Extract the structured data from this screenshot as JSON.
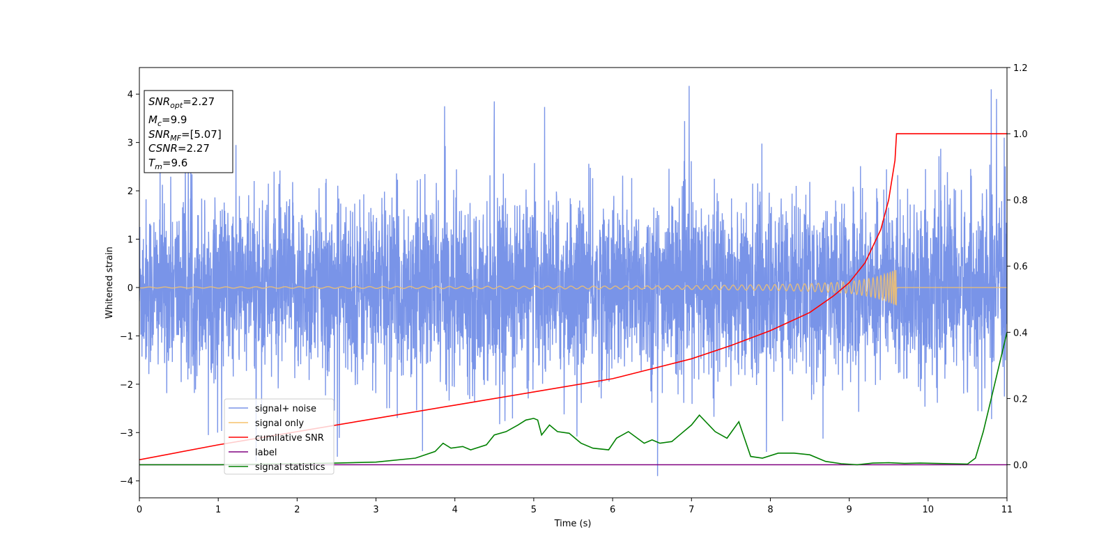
{
  "chart_data": {
    "type": "line",
    "title": "",
    "xlabel": "Time (s)",
    "ylabel": "Whitened strain",
    "y2label": "",
    "xlim": [
      0,
      11
    ],
    "ylim": [
      -4.35,
      4.55
    ],
    "y2lim": [
      -0.1,
      1.2
    ],
    "xticks": [
      0,
      1,
      2,
      3,
      4,
      5,
      6,
      7,
      8,
      9,
      10,
      11
    ],
    "yticks": [
      -4,
      -3,
      -2,
      -1,
      0,
      1,
      2,
      3,
      4
    ],
    "y2ticks": [
      0.0,
      0.2,
      0.4,
      0.6,
      0.8,
      1.0,
      1.2
    ],
    "y2tick_labels": [
      "0.0",
      "0.2",
      "0.4",
      "0.6",
      "0.8",
      "1.0",
      "1.2"
    ],
    "grid": false,
    "legend_position": "lower-left",
    "series": [
      {
        "name": "signal+ noise",
        "axis": "left",
        "color": "#7994e8",
        "kind": "noise-band",
        "approx_std": 0.9,
        "approx_range": [
          -3.9,
          4.2
        ],
        "notable_peaks": [
          [
            6.97,
            4.17
          ],
          [
            10.8,
            4.1
          ],
          [
            3.87,
            3.75
          ],
          [
            4.5,
            3.85
          ],
          [
            6.57,
            -3.9
          ],
          [
            2.51,
            -3.5
          ],
          [
            7.95,
            -3.4
          ]
        ]
      },
      {
        "name": "signal only",
        "axis": "left",
        "color": "#f5c26b",
        "kind": "chirp",
        "merger_time": 9.6,
        "envelope": [
          [
            0,
            0.01
          ],
          [
            6,
            0.03
          ],
          [
            7,
            0.04
          ],
          [
            8,
            0.06
          ],
          [
            8.5,
            0.08
          ],
          [
            9,
            0.12
          ],
          [
            9.3,
            0.2
          ],
          [
            9.5,
            0.3
          ],
          [
            9.6,
            0.38
          ],
          [
            9.61,
            0.0
          ],
          [
            11,
            0.0
          ]
        ]
      },
      {
        "name": "cumilative SNR",
        "axis": "right",
        "color": "#ff0000",
        "x": [
          0,
          1,
          2,
          3,
          4,
          5,
          6,
          6.5,
          7,
          7.5,
          8,
          8.5,
          8.8,
          9.0,
          9.2,
          9.4,
          9.5,
          9.58,
          9.6,
          11
        ],
        "y": [
          0.015,
          0.06,
          0.1,
          0.14,
          0.18,
          0.22,
          0.26,
          0.29,
          0.32,
          0.36,
          0.405,
          0.46,
          0.51,
          0.55,
          0.61,
          0.71,
          0.8,
          0.92,
          1.0,
          1.0
        ]
      },
      {
        "name": "label",
        "axis": "right",
        "color": "#800080",
        "x": [
          0,
          11
        ],
        "y": [
          0.0,
          0.0
        ]
      },
      {
        "name": "signal statistics",
        "axis": "right",
        "color": "#008000",
        "x": [
          0,
          1,
          2,
          2.5,
          3,
          3.5,
          3.75,
          3.85,
          3.95,
          4.1,
          4.2,
          4.4,
          4.5,
          4.65,
          4.8,
          4.9,
          5.0,
          5.05,
          5.1,
          5.2,
          5.3,
          5.45,
          5.6,
          5.75,
          5.95,
          6.05,
          6.2,
          6.4,
          6.5,
          6.6,
          6.75,
          6.85,
          7.0,
          7.1,
          7.3,
          7.45,
          7.6,
          7.75,
          7.9,
          8.1,
          8.3,
          8.5,
          8.7,
          8.9,
          9.1,
          9.3,
          9.5,
          9.7,
          9.9,
          10.1,
          10.3,
          10.5,
          10.6,
          10.7,
          10.8,
          10.9,
          11.0
        ],
        "y": [
          0.0,
          0.0,
          0.003,
          0.005,
          0.008,
          0.02,
          0.04,
          0.065,
          0.05,
          0.055,
          0.045,
          0.06,
          0.09,
          0.1,
          0.12,
          0.135,
          0.14,
          0.135,
          0.09,
          0.12,
          0.1,
          0.095,
          0.065,
          0.05,
          0.045,
          0.08,
          0.1,
          0.065,
          0.075,
          0.065,
          0.07,
          0.09,
          0.12,
          0.15,
          0.1,
          0.08,
          0.13,
          0.025,
          0.02,
          0.035,
          0.035,
          0.03,
          0.01,
          0.003,
          0.0,
          0.005,
          0.006,
          0.004,
          0.005,
          0.004,
          0.003,
          0.002,
          0.02,
          0.1,
          0.2,
          0.3,
          0.4
        ]
      }
    ],
    "info_box": [
      {
        "base": "SNR",
        "sub": "opt",
        "value": "=2.27"
      },
      {
        "base": "M",
        "sub": "c",
        "value": "=9.9"
      },
      {
        "base": "SNR",
        "sub": "MF",
        "value": "=[5.07]"
      },
      {
        "base": "CSNR",
        "sub": "",
        "value": "=2.27"
      },
      {
        "base": "T",
        "sub": "m",
        "value": "=9.6"
      }
    ]
  }
}
